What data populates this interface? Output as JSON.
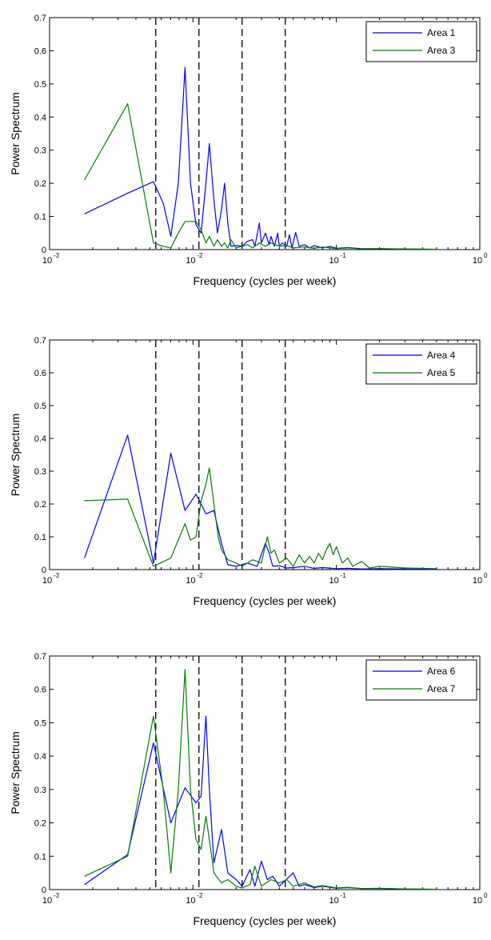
{
  "chart_data": [
    {
      "type": "line",
      "xlabel": "Frequency (cycles per week)",
      "ylabel": "Power Spectrum",
      "xscale": "log",
      "xlim": [
        0.001,
        1
      ],
      "ylim": [
        0,
        0.7
      ],
      "yticks": [
        0,
        0.1,
        0.2,
        0.3,
        0.4,
        0.5,
        0.6,
        0.7
      ],
      "yticklabels": [
        "0",
        "0.1",
        "0.2",
        "0.3",
        "0.4",
        "0.5",
        "0.6",
        "0.7"
      ],
      "xticks": [
        0.001,
        0.01,
        0.1,
        1
      ],
      "xtick_base": [
        "10",
        "10",
        "10",
        "10"
      ],
      "xtick_exp": [
        "-3",
        "-2",
        "-1",
        "0"
      ],
      "vlines": [
        0.0055,
        0.011,
        0.022,
        0.044
      ],
      "legend_position": "top-right",
      "series": [
        {
          "name": "Area 1",
          "color": "#0000ff",
          "points": [
            [
              0.00175,
              0.108
            ],
            [
              0.0035,
              0.17
            ],
            [
              0.0053,
              0.205
            ],
            [
              0.0062,
              0.14
            ],
            [
              0.007,
              0.04
            ],
            [
              0.0079,
              0.2
            ],
            [
              0.0088,
              0.55
            ],
            [
              0.0096,
              0.2
            ],
            [
              0.0105,
              0.075
            ],
            [
              0.0114,
              0.05
            ],
            [
              0.0123,
              0.2
            ],
            [
              0.013,
              0.32
            ],
            [
              0.014,
              0.15
            ],
            [
              0.0148,
              0.05
            ],
            [
              0.0158,
              0.12
            ],
            [
              0.0166,
              0.2
            ],
            [
              0.0175,
              0.08
            ],
            [
              0.0184,
              0.01
            ],
            [
              0.02,
              0.012
            ],
            [
              0.022,
              0.01
            ],
            [
              0.024,
              0.025
            ],
            [
              0.026,
              0.03
            ],
            [
              0.027,
              0.01
            ],
            [
              0.029,
              0.08
            ],
            [
              0.03,
              0.02
            ],
            [
              0.032,
              0.05
            ],
            [
              0.034,
              0.015
            ],
            [
              0.035,
              0.04
            ],
            [
              0.037,
              0.01
            ],
            [
              0.039,
              0.05
            ],
            [
              0.04,
              0.01
            ],
            [
              0.042,
              0.02
            ],
            [
              0.045,
              0.01
            ],
            [
              0.047,
              0.045
            ],
            [
              0.049,
              0.005
            ],
            [
              0.052,
              0.052
            ],
            [
              0.055,
              0.01
            ],
            [
              0.06,
              0.015
            ],
            [
              0.065,
              0.005
            ],
            [
              0.07,
              0.012
            ],
            [
              0.08,
              0.005
            ],
            [
              0.09,
              0.01
            ],
            [
              0.1,
              0.004
            ],
            [
              0.12,
              0.006
            ],
            [
              0.15,
              0.003
            ],
            [
              0.2,
              0.003
            ],
            [
              0.3,
              0.002
            ],
            [
              0.5,
              0.001
            ]
          ]
        },
        {
          "name": "Area 3",
          "color": "#008000",
          "points": [
            [
              0.00175,
              0.21
            ],
            [
              0.0035,
              0.44
            ],
            [
              0.0053,
              0.02
            ],
            [
              0.0062,
              0.01
            ],
            [
              0.007,
              0.005
            ],
            [
              0.0079,
              0.05
            ],
            [
              0.0088,
              0.085
            ],
            [
              0.0096,
              0.085
            ],
            [
              0.0105,
              0.085
            ],
            [
              0.0114,
              0.06
            ],
            [
              0.0123,
              0.02
            ],
            [
              0.013,
              0.04
            ],
            [
              0.014,
              0.01
            ],
            [
              0.0148,
              0.03
            ],
            [
              0.0158,
              0.01
            ],
            [
              0.0166,
              0.02
            ],
            [
              0.0175,
              0.005
            ],
            [
              0.0184,
              0.03
            ],
            [
              0.02,
              0.005
            ],
            [
              0.022,
              0.01
            ],
            [
              0.024,
              0.015
            ],
            [
              0.026,
              0.005
            ],
            [
              0.029,
              0.02
            ],
            [
              0.032,
              0.01
            ],
            [
              0.035,
              0.02
            ],
            [
              0.04,
              0.01
            ],
            [
              0.045,
              0.012
            ],
            [
              0.05,
              0.005
            ],
            [
              0.06,
              0.008
            ],
            [
              0.07,
              0.004
            ],
            [
              0.08,
              0.008
            ],
            [
              0.1,
              0.003
            ],
            [
              0.12,
              0.005
            ],
            [
              0.15,
              0.002
            ],
            [
              0.2,
              0.003
            ],
            [
              0.3,
              0.002
            ],
            [
              0.5,
              0.001
            ]
          ]
        }
      ]
    },
    {
      "type": "line",
      "xlabel": "Frequency (cycles per week)",
      "ylabel": "Power Spectrum",
      "xscale": "log",
      "xlim": [
        0.001,
        1
      ],
      "ylim": [
        0,
        0.7
      ],
      "yticks": [
        0,
        0.1,
        0.2,
        0.3,
        0.4,
        0.5,
        0.6,
        0.7
      ],
      "yticklabels": [
        "0",
        "0.1",
        "0.2",
        "0.3",
        "0.4",
        "0.5",
        "0.6",
        "0.7"
      ],
      "xticks": [
        0.001,
        0.01,
        0.1,
        1
      ],
      "xtick_base": [
        "10",
        "10",
        "10",
        "10"
      ],
      "xtick_exp": [
        "-3",
        "-2",
        "-1",
        "0"
      ],
      "vlines": [
        0.0055,
        0.011,
        0.022,
        0.044
      ],
      "legend_position": "top-right",
      "series": [
        {
          "name": "Area 4",
          "color": "#0000ff",
          "points": [
            [
              0.00175,
              0.035
            ],
            [
              0.0035,
              0.41
            ],
            [
              0.0053,
              0.02
            ],
            [
              0.007,
              0.355
            ],
            [
              0.0088,
              0.18
            ],
            [
              0.0105,
              0.23
            ],
            [
              0.0114,
              0.2
            ],
            [
              0.0123,
              0.17
            ],
            [
              0.014,
              0.18
            ],
            [
              0.0158,
              0.08
            ],
            [
              0.0175,
              0.015
            ],
            [
              0.02,
              0.01
            ],
            [
              0.024,
              0.02
            ],
            [
              0.028,
              0.01
            ],
            [
              0.032,
              0.08
            ],
            [
              0.034,
              0.05
            ],
            [
              0.036,
              0.01
            ],
            [
              0.04,
              0.012
            ],
            [
              0.045,
              0.005
            ],
            [
              0.05,
              0.006
            ],
            [
              0.06,
              0.01
            ],
            [
              0.07,
              0.004
            ],
            [
              0.08,
              0.006
            ],
            [
              0.1,
              0.003
            ],
            [
              0.12,
              0.004
            ],
            [
              0.15,
              0.002
            ],
            [
              0.2,
              0.003
            ],
            [
              0.3,
              0.002
            ],
            [
              0.5,
              0.001
            ]
          ]
        },
        {
          "name": "Area 5",
          "color": "#008000",
          "points": [
            [
              0.00175,
              0.21
            ],
            [
              0.0035,
              0.215
            ],
            [
              0.0053,
              0.01
            ],
            [
              0.007,
              0.035
            ],
            [
              0.0088,
              0.14
            ],
            [
              0.0096,
              0.09
            ],
            [
              0.0105,
              0.1
            ],
            [
              0.0114,
              0.21
            ],
            [
              0.0123,
              0.26
            ],
            [
              0.013,
              0.31
            ],
            [
              0.014,
              0.2
            ],
            [
              0.015,
              0.1
            ],
            [
              0.0158,
              0.06
            ],
            [
              0.0175,
              0.03
            ],
            [
              0.02,
              0.02
            ],
            [
              0.022,
              0.01
            ],
            [
              0.026,
              0.03
            ],
            [
              0.03,
              0.02
            ],
            [
              0.033,
              0.1
            ],
            [
              0.035,
              0.05
            ],
            [
              0.037,
              0.06
            ],
            [
              0.04,
              0.02
            ],
            [
              0.045,
              0.035
            ],
            [
              0.05,
              0.01
            ],
            [
              0.055,
              0.045
            ],
            [
              0.06,
              0.02
            ],
            [
              0.065,
              0.04
            ],
            [
              0.07,
              0.02
            ],
            [
              0.075,
              0.05
            ],
            [
              0.08,
              0.03
            ],
            [
              0.085,
              0.06
            ],
            [
              0.09,
              0.08
            ],
            [
              0.095,
              0.045
            ],
            [
              0.1,
              0.07
            ],
            [
              0.11,
              0.02
            ],
            [
              0.12,
              0.035
            ],
            [
              0.13,
              0.01
            ],
            [
              0.15,
              0.025
            ],
            [
              0.17,
              0.005
            ],
            [
              0.2,
              0.01
            ],
            [
              0.3,
              0.005
            ],
            [
              0.5,
              0.003
            ]
          ]
        }
      ]
    },
    {
      "type": "line",
      "xlabel": "Frequency (cycles per week)",
      "ylabel": "Power Spectrum",
      "xscale": "log",
      "xlim": [
        0.001,
        1
      ],
      "ylim": [
        0,
        0.7
      ],
      "yticks": [
        0,
        0.1,
        0.2,
        0.3,
        0.4,
        0.5,
        0.6,
        0.7
      ],
      "yticklabels": [
        "0",
        "0.1",
        "0.2",
        "0.3",
        "0.4",
        "0.5",
        "0.6",
        "0.7"
      ],
      "xticks": [
        0.001,
        0.01,
        0.1,
        1
      ],
      "xtick_base": [
        "10",
        "10",
        "10",
        "10"
      ],
      "xtick_exp": [
        "-3",
        "-2",
        "-1",
        "0"
      ],
      "vlines": [
        0.0055,
        0.011,
        0.022,
        0.044
      ],
      "legend_position": "top-right",
      "series": [
        {
          "name": "Area 6",
          "color": "#0000ff",
          "points": [
            [
              0.00175,
              0.015
            ],
            [
              0.0035,
              0.105
            ],
            [
              0.0053,
              0.44
            ],
            [
              0.007,
              0.2
            ],
            [
              0.0088,
              0.305
            ],
            [
              0.0105,
              0.26
            ],
            [
              0.0114,
              0.28
            ],
            [
              0.0123,
              0.52
            ],
            [
              0.013,
              0.3
            ],
            [
              0.014,
              0.08
            ],
            [
              0.0158,
              0.18
            ],
            [
              0.0175,
              0.05
            ],
            [
              0.02,
              0.03
            ],
            [
              0.022,
              0.01
            ],
            [
              0.025,
              0.06
            ],
            [
              0.027,
              0.01
            ],
            [
              0.03,
              0.085
            ],
            [
              0.033,
              0.03
            ],
            [
              0.036,
              0.04
            ],
            [
              0.04,
              0.01
            ],
            [
              0.05,
              0.05
            ],
            [
              0.055,
              0.01
            ],
            [
              0.06,
              0.015
            ],
            [
              0.07,
              0.006
            ],
            [
              0.08,
              0.01
            ],
            [
              0.1,
              0.004
            ],
            [
              0.12,
              0.006
            ],
            [
              0.15,
              0.003
            ],
            [
              0.2,
              0.003
            ],
            [
              0.3,
              0.002
            ],
            [
              0.5,
              0.001
            ]
          ]
        },
        {
          "name": "Area 7",
          "color": "#008000",
          "points": [
            [
              0.00175,
              0.04
            ],
            [
              0.0035,
              0.1
            ],
            [
              0.0053,
              0.52
            ],
            [
              0.0062,
              0.3
            ],
            [
              0.007,
              0.05
            ],
            [
              0.0079,
              0.3
            ],
            [
              0.0088,
              0.66
            ],
            [
              0.0096,
              0.3
            ],
            [
              0.0105,
              0.15
            ],
            [
              0.0114,
              0.12
            ],
            [
              0.0123,
              0.22
            ],
            [
              0.013,
              0.15
            ],
            [
              0.014,
              0.05
            ],
            [
              0.0158,
              0.02
            ],
            [
              0.0175,
              0.03
            ],
            [
              0.02,
              0.01
            ],
            [
              0.022,
              0.005
            ],
            [
              0.025,
              0.015
            ],
            [
              0.027,
              0.07
            ],
            [
              0.03,
              0.01
            ],
            [
              0.035,
              0.03
            ],
            [
              0.04,
              0.02
            ],
            [
              0.045,
              0.03
            ],
            [
              0.05,
              0.01
            ],
            [
              0.06,
              0.02
            ],
            [
              0.07,
              0.008
            ],
            [
              0.08,
              0.012
            ],
            [
              0.1,
              0.005
            ],
            [
              0.12,
              0.007
            ],
            [
              0.15,
              0.003
            ],
            [
              0.2,
              0.004
            ],
            [
              0.3,
              0.002
            ],
            [
              0.5,
              0.001
            ]
          ]
        }
      ]
    }
  ]
}
